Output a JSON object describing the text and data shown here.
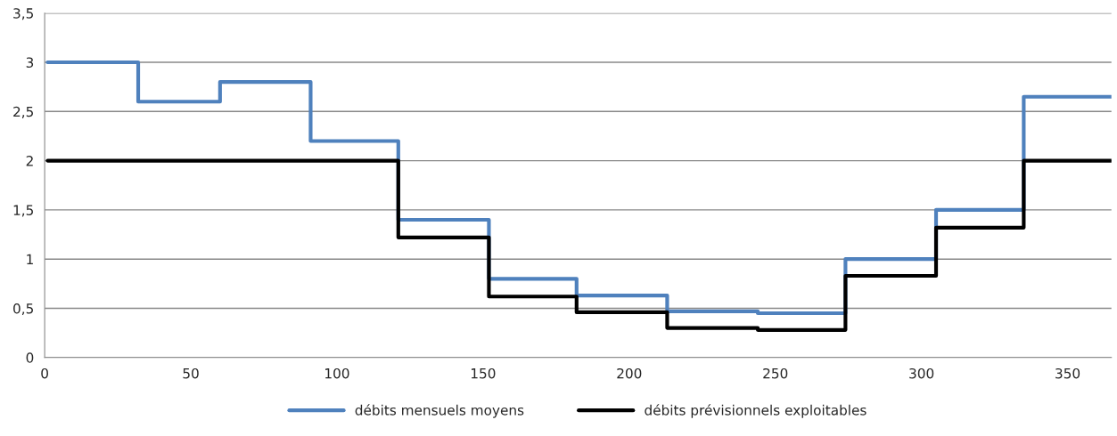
{
  "chart_data": {
    "type": "step",
    "x": [
      1,
      32,
      60,
      91,
      121,
      152,
      182,
      213,
      244,
      274,
      305,
      335,
      365
    ],
    "series": [
      {
        "name": "débits mensuels moyens",
        "color": "#4f81bd",
        "values": [
          3,
          2.6,
          2.8,
          2.2,
          1.4,
          0.8,
          0.63,
          0.47,
          0.45,
          1.0,
          1.5,
          2.65,
          2.65
        ]
      },
      {
        "name": "débits prévisionnels exploitables",
        "color": "#000000",
        "values": [
          2,
          2,
          2,
          2,
          1.22,
          0.62,
          0.46,
          0.3,
          0.28,
          0.83,
          1.32,
          2,
          2
        ]
      }
    ],
    "xlim": [
      0,
      365
    ],
    "xticks": [
      0,
      50,
      100,
      150,
      200,
      250,
      300,
      350
    ],
    "ylim": [
      0,
      3.5
    ],
    "yticks": [
      0,
      {
        "value": 0.5,
        "label": "0,5"
      },
      1,
      {
        "value": 1.5,
        "label": "1,5"
      },
      2,
      {
        "value": 2.5,
        "label": "2,5"
      },
      3,
      {
        "value": 3.5,
        "label": "3,5"
      }
    ],
    "grid": "y",
    "legend": "bottom",
    "marker": "none",
    "line_style": "solid"
  }
}
